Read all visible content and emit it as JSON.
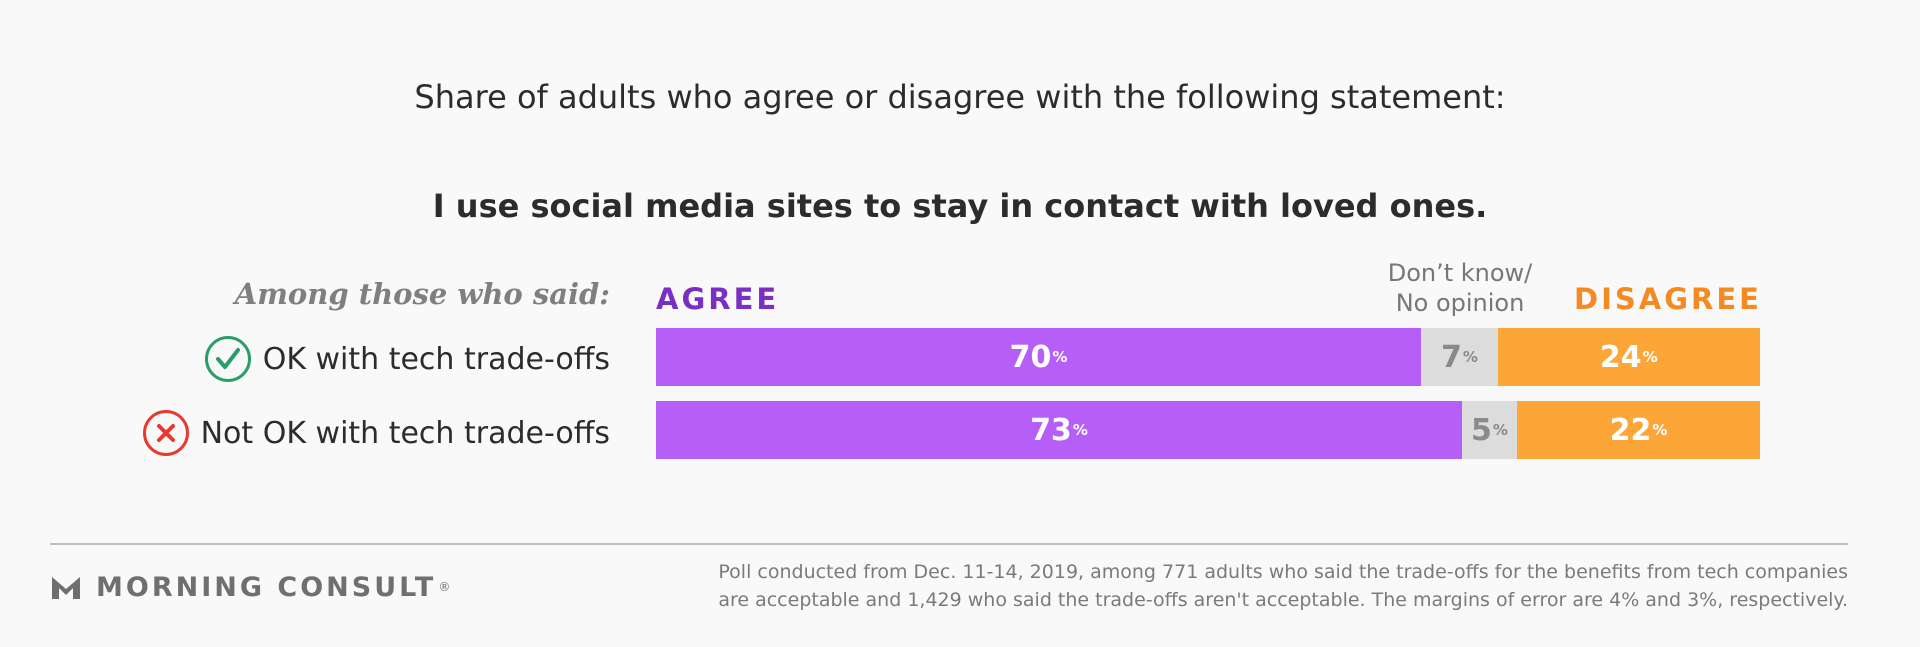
{
  "colors": {
    "agree": "#b55ff8",
    "dont_know": "#dcdcdc",
    "disagree": "#fba637",
    "agree_text": "#7b2fc2",
    "disagree_text": "#f58a23",
    "ok_icon": "#2a9d6b",
    "not_ok_icon": "#e8392f"
  },
  "chart_data": {
    "type": "bar",
    "orientation": "horizontal-stacked",
    "title": "I use social media sites to stay in contact with loved ones.",
    "subtitle": "Share of adults who agree or disagree with the following statement:",
    "group_label": "Among those who said:",
    "categories": [
      "OK with tech trade-offs",
      "Not OK with tech trade-offs"
    ],
    "category_icons": [
      "check-icon",
      "x-icon"
    ],
    "series": [
      {
        "name": "AGREE",
        "values": [
          70,
          73
        ]
      },
      {
        "name": "Don’t know/ No opinion",
        "values": [
          7,
          5
        ]
      },
      {
        "name": "DISAGREE",
        "values": [
          24,
          22
        ]
      }
    ],
    "unit": "%",
    "legend": {
      "agree": "AGREE",
      "dont_know_line1": "Don’t know/",
      "dont_know_line2": "No opinion",
      "disagree": "DISAGREE"
    }
  },
  "footer": {
    "brand": "MORNING CONSULT",
    "brand_mark": "®",
    "note_line1": "Poll conducted from Dec. 11-14, 2019, among 771 adults who said the trade-offs for the benefits from tech companies",
    "note_line2": "are acceptable and 1,429 who said the trade-offs aren't acceptable. The margins of error are 4% and 3%, respectively."
  }
}
